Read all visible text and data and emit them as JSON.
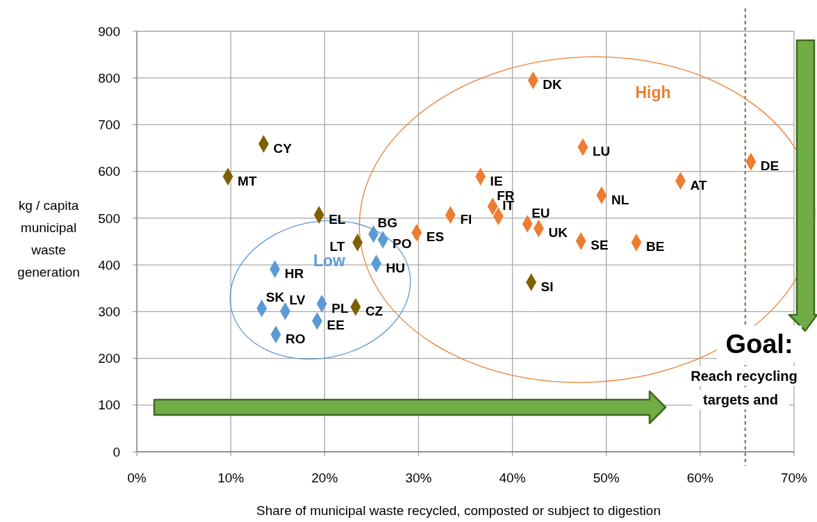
{
  "chart_data": {
    "type": "scatter",
    "xlabel": "Share of municipal waste recycled, composted or subject to digestion",
    "ylabel": "kg / capita municipal waste generation",
    "xlim": [
      0,
      70
    ],
    "ylim": [
      0,
      900
    ],
    "xticks": [
      {
        "value": 0,
        "label": "0%"
      },
      {
        "value": 10,
        "label": "10%"
      },
      {
        "value": 20,
        "label": "20%"
      },
      {
        "value": 30,
        "label": "30%"
      },
      {
        "value": 40,
        "label": "40%"
      },
      {
        "value": 50,
        "label": "50%"
      },
      {
        "value": 60,
        "label": "60%"
      },
      {
        "value": 70,
        "label": "70%"
      }
    ],
    "yticks": [
      0,
      100,
      200,
      300,
      400,
      500,
      600,
      700,
      800,
      900
    ],
    "grid": true,
    "marker": "diamond",
    "series": [
      {
        "color": "#5b9bd5",
        "x": [
          14.7,
          13.3,
          15.8,
          14.8,
          19.7,
          19.2,
          25.2,
          26.2,
          25.5
        ],
        "values": [
          391,
          307,
          301,
          251,
          317,
          280,
          466,
          454,
          403
        ]
      },
      {
        "color": "#7f6000",
        "x": [
          19.4,
          23.5,
          23.3,
          13.5,
          9.7,
          42.0
        ],
        "values": [
          507,
          448,
          310,
          659,
          589,
          363
        ]
      },
      {
        "color": "#ed7d31",
        "x": [
          29.8,
          33.4,
          36.6,
          37.9,
          38.5,
          41.6,
          42.8,
          47.3,
          53.2,
          42.2,
          47.5,
          49.5,
          57.9,
          65.4
        ],
        "values": [
          469,
          507,
          589,
          525,
          504,
          488,
          478,
          451,
          448,
          795,
          652,
          549,
          580,
          621
        ]
      }
    ],
    "ref_lines": [
      {
        "axis": "x",
        "value": 64.8,
        "color": "#548235",
        "line_style": "dashed"
      }
    ],
    "annotations": [
      "Goal:",
      "Reach recycling",
      "targets and",
      "High",
      "Low",
      {
        "text": "DK",
        "x": 42.2,
        "y": 795
      },
      {
        "text": "LU",
        "x": 47.5,
        "y": 652
      },
      {
        "text": "IE",
        "x": 36.6,
        "y": 589
      },
      {
        "text": "DE",
        "x": 65.4,
        "y": 621
      },
      {
        "text": "AT",
        "x": 57.9,
        "y": 580
      },
      {
        "text": "NL",
        "x": 49.5,
        "y": 549
      },
      {
        "text": "FR",
        "x": 37.9,
        "y": 525
      },
      {
        "text": "FI",
        "x": 33.4,
        "y": 507
      },
      {
        "text": "IT",
        "x": 38.5,
        "y": 504
      },
      {
        "text": "EU",
        "x": 41.6,
        "y": 488
      },
      {
        "text": "BG",
        "x": 25.2,
        "y": 466
      },
      {
        "text": "EL",
        "x": 19.4,
        "y": 507
      },
      {
        "text": "CY",
        "x": 13.5,
        "y": 659
      },
      {
        "text": "MT",
        "x": 9.7,
        "y": 589
      },
      {
        "text": "LT",
        "x": 23.5,
        "y": 448
      },
      {
        "text": "PO",
        "x": 26.2,
        "y": 454
      },
      {
        "text": "ES",
        "x": 29.8,
        "y": 469
      },
      {
        "text": "UK",
        "x": 42.8,
        "y": 478
      },
      {
        "text": "SE",
        "x": 47.3,
        "y": 451
      },
      {
        "text": "BE",
        "x": 53.2,
        "y": 448
      },
      {
        "text": "HR",
        "x": 14.7,
        "y": 391
      },
      {
        "text": "HU",
        "x": 25.5,
        "y": 403
      },
      {
        "text": "SI",
        "x": 42.0,
        "y": 363
      },
      {
        "text": "SK",
        "x": 13.3,
        "y": 307
      },
      {
        "text": "PL",
        "x": 19.7,
        "y": 317
      },
      {
        "text": "CZ",
        "x": 23.3,
        "y": 310
      },
      {
        "text": "LV",
        "x": 15.8,
        "y": 301
      },
      {
        "text": "EE",
        "x": 19.2,
        "y": 280
      },
      {
        "text": "RO",
        "x": 14.8,
        "y": 251
      }
    ]
  }
}
